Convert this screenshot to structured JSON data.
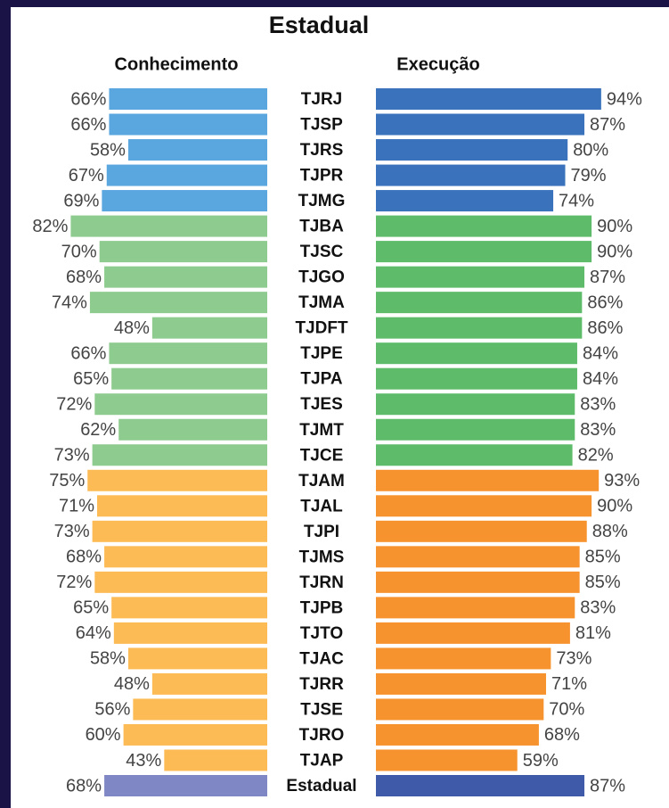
{
  "chart_data": {
    "type": "bar",
    "title": "Estadual",
    "categories": [
      "TJRJ",
      "TJSP",
      "TJRS",
      "TJPR",
      "TJMG",
      "TJBA",
      "TJSC",
      "TJGO",
      "TJMA",
      "TJDFT",
      "TJPE",
      "TJPA",
      "TJES",
      "TJMT",
      "TJCE",
      "TJAM",
      "TJAL",
      "TJPI",
      "TJMS",
      "TJRN",
      "TJPB",
      "TJTO",
      "TJAC",
      "TJRR",
      "TJSE",
      "TJRO",
      "TJAP",
      "Estadual"
    ],
    "series": [
      {
        "name": "Conhecimento",
        "side": "left",
        "values": [
          66,
          66,
          58,
          67,
          69,
          82,
          70,
          68,
          74,
          48,
          66,
          65,
          72,
          62,
          73,
          75,
          71,
          73,
          68,
          72,
          65,
          64,
          58,
          48,
          56,
          60,
          43,
          68
        ],
        "value_labels": [
          "66%",
          "66%",
          "58%",
          "67%",
          "69%",
          "82%",
          "70%",
          "68%",
          "74%",
          "48%",
          "66%",
          "65%",
          "72%",
          "62%",
          "73%",
          "75%",
          "71%",
          "73%",
          "68%",
          "72%",
          "65%",
          "64%",
          "58%",
          "48%",
          "56%",
          "60%",
          "43%",
          "68%"
        ],
        "colors": [
          "#5aa6de",
          "#5aa6de",
          "#5aa6de",
          "#5aa6de",
          "#5aa6de",
          "#8dcb8e",
          "#8dcb8e",
          "#8dcb8e",
          "#8dcb8e",
          "#8dcb8e",
          "#8dcb8e",
          "#8dcb8e",
          "#8dcb8e",
          "#8dcb8e",
          "#8dcb8e",
          "#fdbb56",
          "#fdbb56",
          "#fdbb56",
          "#fdbb56",
          "#fdbb56",
          "#fdbb56",
          "#fdbb56",
          "#fdbb56",
          "#fdbb56",
          "#fdbb56",
          "#fdbb56",
          "#fdbb56",
          "#7f88c4"
        ]
      },
      {
        "name": "Execução",
        "side": "right",
        "values": [
          94,
          87,
          80,
          79,
          74,
          90,
          90,
          87,
          86,
          86,
          84,
          84,
          83,
          83,
          82,
          93,
          90,
          88,
          85,
          85,
          83,
          81,
          73,
          71,
          70,
          68,
          59,
          87
        ],
        "value_labels": [
          "94%",
          "87%",
          "80%",
          "79%",
          "74%",
          "90%",
          "90%",
          "87%",
          "86%",
          "86%",
          "84%",
          "84%",
          "83%",
          "83%",
          "82%",
          "93%",
          "90%",
          "88%",
          "85%",
          "85%",
          "83%",
          "81%",
          "73%",
          "71%",
          "70%",
          "68%",
          "59%",
          "87%"
        ],
        "colors": [
          "#3a72bb",
          "#3a72bb",
          "#3a72bb",
          "#3a72bb",
          "#3a72bb",
          "#5dbb6a",
          "#5dbb6a",
          "#5dbb6a",
          "#5dbb6a",
          "#5dbb6a",
          "#5dbb6a",
          "#5dbb6a",
          "#5dbb6a",
          "#5dbb6a",
          "#5dbb6a",
          "#f7932f",
          "#f7932f",
          "#f7932f",
          "#f7932f",
          "#f7932f",
          "#f7932f",
          "#f7932f",
          "#f7932f",
          "#f7932f",
          "#f7932f",
          "#f7932f",
          "#f7932f",
          "#3f5aa8"
        ]
      }
    ]
  }
}
